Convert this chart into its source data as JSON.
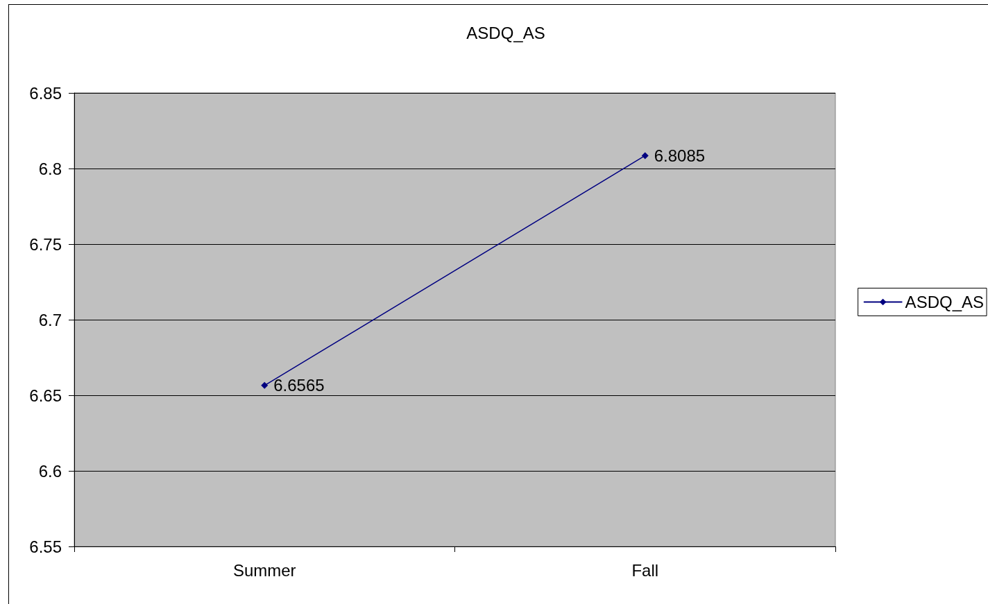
{
  "chart_data": {
    "type": "line",
    "title": "ASDQ_AS",
    "categories": [
      "Summer",
      "Fall"
    ],
    "series": [
      {
        "name": "ASDQ_AS",
        "color": "#000080",
        "values": [
          6.6565,
          6.8085
        ]
      }
    ],
    "ylim": [
      6.55,
      6.85
    ],
    "yticks": [
      6.55,
      6.6,
      6.65,
      6.7,
      6.75,
      6.8,
      6.85
    ],
    "grid": "y",
    "legend": "right",
    "marker": "diamond",
    "line_style": "solid",
    "data_labels": true
  }
}
